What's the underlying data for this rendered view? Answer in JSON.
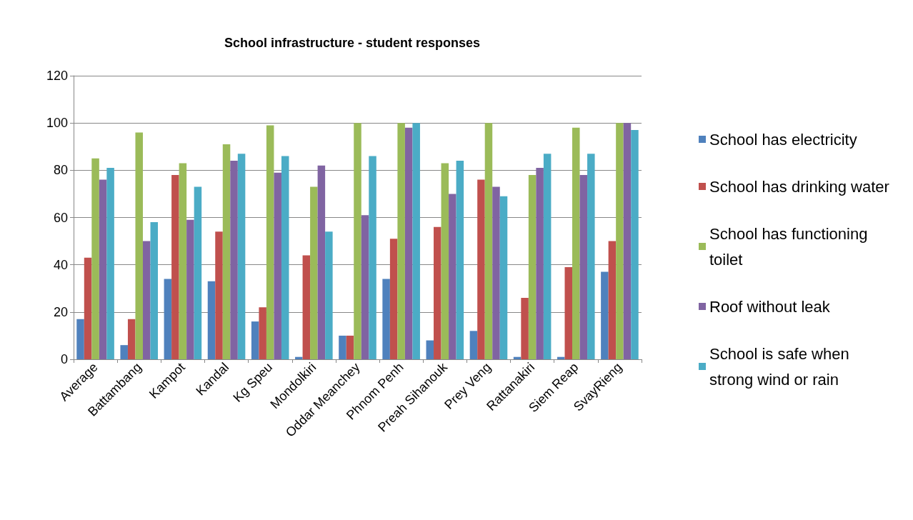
{
  "chart_data": {
    "type": "bar",
    "title": "School infrastructure - student responses",
    "categories": [
      "Average",
      "Battambang",
      "Kampot",
      "Kandal",
      "Kg Speu",
      "Mondolkiri",
      "Oddar Meanchey",
      "Phnom Penh",
      "Preah Sihanouk",
      "Prey Veng",
      "Rattanakiri",
      "Siem Reap",
      "SvayRieng"
    ],
    "series": [
      {
        "name": "School has electricity",
        "color": "#4f81bd",
        "values": [
          17,
          6,
          34,
          33,
          16,
          1,
          10,
          34,
          8,
          12,
          1,
          1,
          37
        ]
      },
      {
        "name": "School has drinking water",
        "color": "#c0504d",
        "values": [
          43,
          17,
          78,
          54,
          22,
          44,
          10,
          51,
          56,
          76,
          26,
          39,
          50
        ]
      },
      {
        "name": "School has functioning toilet",
        "color": "#9bbb59",
        "values": [
          85,
          96,
          83,
          91,
          99,
          73,
          100,
          100,
          83,
          100,
          78,
          98,
          100
        ]
      },
      {
        "name": "Roof without leak",
        "color": "#8064a2",
        "values": [
          76,
          50,
          59,
          84,
          79,
          82,
          61,
          98,
          70,
          73,
          81,
          78,
          100
        ]
      },
      {
        "name": "School is safe when strong wind or rain",
        "color": "#4bacc6",
        "values": [
          81,
          58,
          73,
          87,
          86,
          54,
          86,
          100,
          84,
          69,
          87,
          87,
          97
        ]
      }
    ],
    "ylim": [
      0,
      120
    ],
    "yticks": [
      0,
      20,
      40,
      60,
      80,
      100,
      120
    ],
    "grid": "y",
    "legend": "right"
  }
}
